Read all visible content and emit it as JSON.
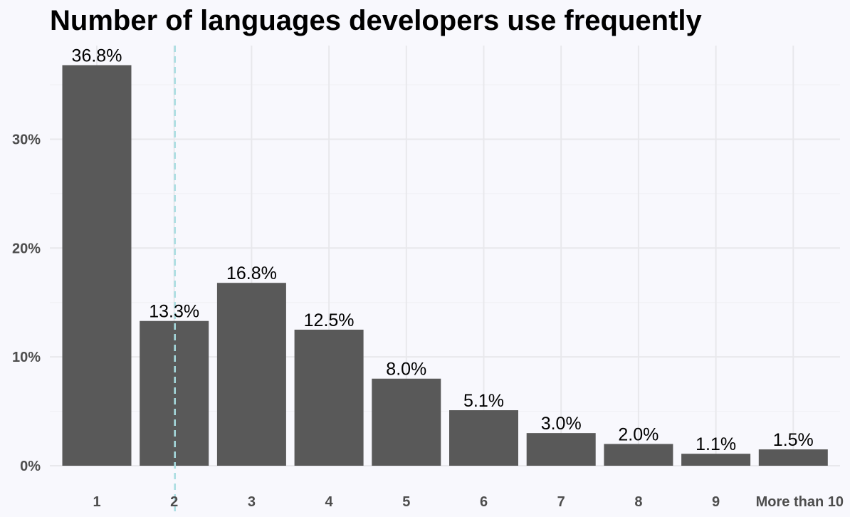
{
  "chart_data": {
    "type": "bar",
    "title": "Number of languages developers use frequently",
    "xlabel": "",
    "ylabel": "",
    "categories": [
      "1",
      "2",
      "3",
      "4",
      "5",
      "6",
      "7",
      "8",
      "9",
      "More than 10"
    ],
    "values": [
      36.8,
      13.3,
      16.8,
      12.5,
      8.0,
      5.1,
      3.0,
      2.0,
      1.1,
      1.5
    ],
    "data_labels": [
      "36.8%",
      "13.3%",
      "16.8%",
      "12.5%",
      "8.0%",
      "5.1%",
      "3.0%",
      "2.0%",
      "1.1%",
      "1.5%"
    ],
    "y_ticks": [
      0,
      10,
      20,
      30
    ],
    "y_tick_labels": [
      "0%",
      "10%",
      "20%",
      "30%"
    ],
    "ylim": [
      0,
      38.6
    ],
    "grid": true,
    "legend": "none",
    "reference_line": {
      "x": 2,
      "style": "dashed"
    },
    "colors": {
      "bar": "#595959",
      "background": "#f8f8fd",
      "reference_line": "#a8dce0"
    }
  }
}
